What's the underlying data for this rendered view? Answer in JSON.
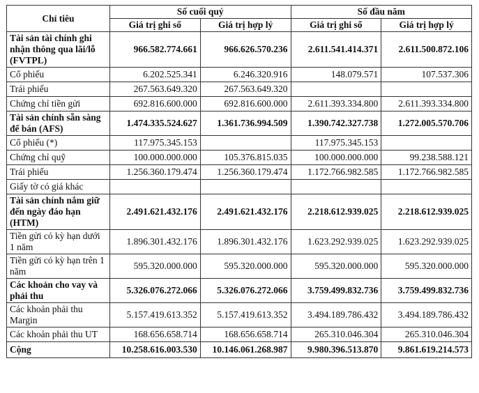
{
  "table": {
    "columns": {
      "label": "Chỉ tiêu",
      "groups": [
        {
          "title": "Số cuối quý",
          "sub": [
            "Giá trị ghi sổ",
            "Giá trị hợp lý"
          ]
        },
        {
          "title": "Số đầu năm",
          "sub": [
            "Giá trị ghi sổ",
            "Giá trị hợp lý"
          ]
        }
      ]
    },
    "rows": [
      {
        "label": "Tài sản tài chính ghi nhận thông qua lãi/lỗ (FVTPL)",
        "bold": true,
        "values": [
          "966.582.774.661",
          "966.626.570.236",
          "2.611.541.414.371",
          "2.611.500.872.106"
        ]
      },
      {
        "label": "Cổ phiếu",
        "values": [
          "6.202.525.341",
          "6.246.320.916",
          "148.079.571",
          "107.537.306"
        ]
      },
      {
        "label": "Trái phiếu",
        "values": [
          "267.563.649.320",
          "267.563.649.320",
          null,
          null
        ]
      },
      {
        "label": "Chứng chỉ tiền gửi",
        "values": [
          "692.816.600.000",
          "692.816.600.000",
          "2.611.393.334.800",
          "2.611.393.334.800"
        ]
      },
      {
        "label": "Tài sản chính sẵn sàng để bán (AFS)",
        "bold": true,
        "values": [
          "1.474.335.524.627",
          "1.361.736.994.509",
          "1.390.742.327.738",
          "1.272.005.570.706"
        ]
      },
      {
        "label": "Cổ phiếu (*)",
        "values": [
          "117.975.345.153",
          null,
          "117.975.345.153",
          null
        ]
      },
      {
        "label": "Chứng chỉ quỹ",
        "values": [
          "100.000.000.000",
          "105.376.815.035",
          "100.000.000.000",
          "99.238.588.121"
        ]
      },
      {
        "label": "Trái phiếu",
        "values": [
          "1.256.360.179.474",
          "1.256.360.179.474",
          "1.172.766.982.585",
          "1.172.766.982.585"
        ]
      },
      {
        "label": "Giấy tờ có giá khác",
        "values": [
          null,
          null,
          null,
          null
        ]
      },
      {
        "label": "Tài sản chính nắm giữ đến ngày đáo hạn (HTM)",
        "bold": true,
        "values": [
          "2.491.621.432.176",
          "2.491.621.432.176",
          "2.218.612.939.025",
          "2.218.612.939.025"
        ]
      },
      {
        "label": "Tiền gửi có kỳ hạn dưới 1 năm",
        "values": [
          "1.896.301.432.176",
          "1.896.301.432.176",
          "1.623.292.939.025",
          "1.623.292.939.025"
        ]
      },
      {
        "label": "Tiền gửi có kỳ hạn trên 1 năm",
        "values": [
          "595.320.000.000",
          "595.320.000.000",
          "595.320.000.000",
          "595.320.000.000"
        ]
      },
      {
        "label": "Các khoản cho vay và phải thu",
        "bold": true,
        "values": [
          "5.326.076.272.066",
          "5.326.076.272.066",
          "3.759.499.832.736",
          "3.759.499.832.736"
        ]
      },
      {
        "label": "Các khoản phải thu Margin",
        "values": [
          "5.157.419.613.352",
          "5.157.419.613.352",
          "3.494.189.786.432",
          "3.494.189.786.432"
        ]
      },
      {
        "label": "Các khoản phải thu UT",
        "values": [
          "168.656.658.714",
          "168.656.658.714",
          "265.310.046.304",
          "265.310.046.304"
        ]
      },
      {
        "label": "Cộng",
        "bold": true,
        "values": [
          "10.258.616.003.530",
          "10.146.061.268.987",
          "9.980.396.513.870",
          "9.861.619.214.573"
        ]
      }
    ]
  }
}
